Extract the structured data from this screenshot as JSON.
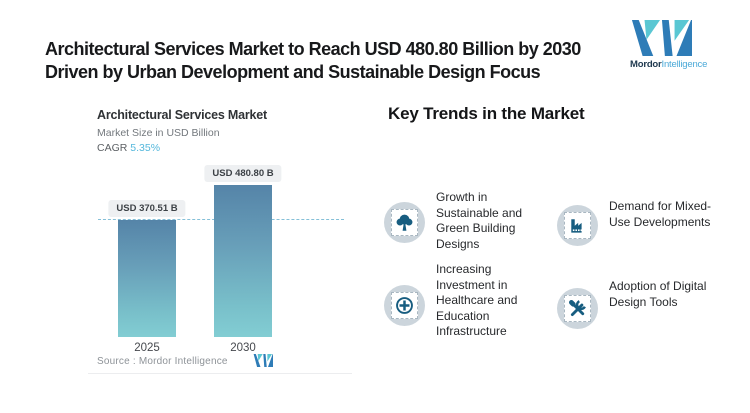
{
  "header": {
    "title_line1": "Architectural Services Market to Reach USD 480.80 Billion by 2030",
    "title_line2": "Driven by Urban Development and Sustainable Design Focus",
    "brand": {
      "name_bold": "Mordor",
      "name_light": "Intelligence"
    }
  },
  "chart": {
    "title": "Architectural Services Market",
    "subtitle": "Market Size in USD Billion",
    "cagr_label": "CAGR",
    "cagr_value": "5.35%",
    "source_label": "Source :  Mordor Intelligence",
    "bars": [
      {
        "year": "2025",
        "label": "USD 370.51 B",
        "value": 370.51
      },
      {
        "year": "2030",
        "label": "USD 480.80 B",
        "value": 480.8
      }
    ]
  },
  "chart_data": {
    "type": "bar",
    "categories": [
      "2025",
      "2030"
    ],
    "values": [
      370.51,
      480.8
    ],
    "title": "Architectural Services Market",
    "ylabel": "Market Size in USD Billion",
    "ylim": [
      0,
      520
    ],
    "grid": false,
    "annotations": [
      "USD 370.51 B",
      "USD 480.80 B",
      "CAGR 5.35%",
      "dashed reference line at 2025 value"
    ]
  },
  "trends": {
    "heading": "Key Trends in the Market",
    "items": [
      {
        "icon": "tree-icon",
        "text": "Growth in Sustainable and Green Building Designs"
      },
      {
        "icon": "factory-icon",
        "text": "Demand for Mixed-Use Developments"
      },
      {
        "icon": "medical-cross-icon",
        "text": "Increasing Investment in Healthcare and Education Infrastructure"
      },
      {
        "icon": "crossed-tools-icon",
        "text": "Adoption of Digital Design Tools"
      }
    ]
  },
  "colors": {
    "brand_blue": "#2e7cb7",
    "brand_teal": "#5ac7d3",
    "cagr_blue": "#55b8dc",
    "glyph_blue": "#175d80",
    "bar_top": "#5584a8",
    "bar_bottom": "#82cdd3",
    "icon_circle_bg": "#ccd5dc",
    "pill_bg": "#eef0f2"
  }
}
